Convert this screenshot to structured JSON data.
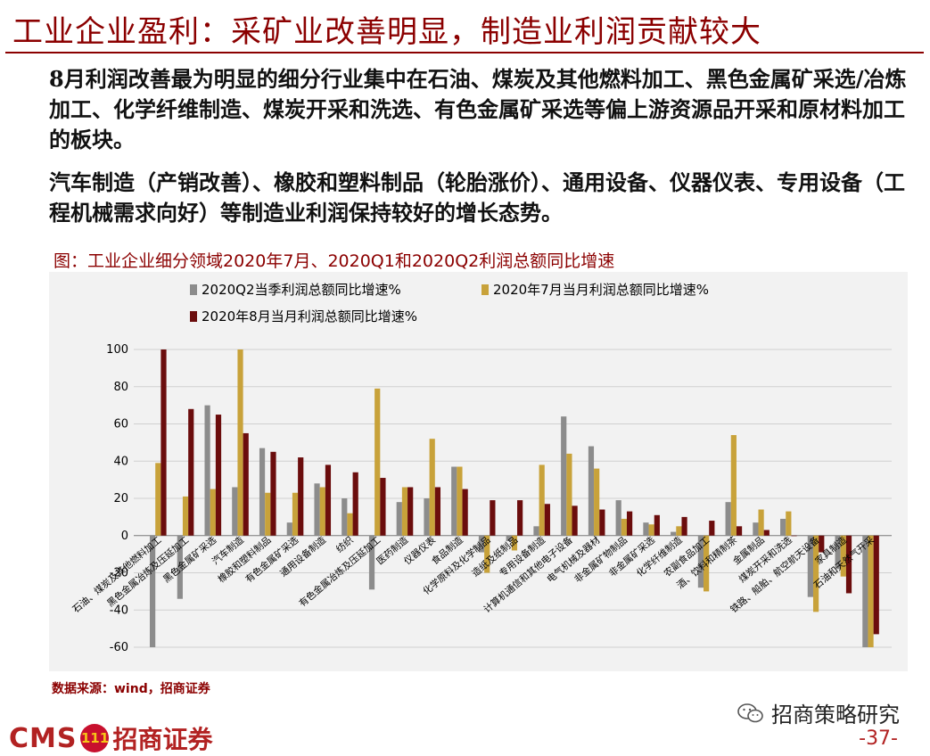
{
  "header": {
    "title": "工业企业盈利：采矿业改善明显，制造业利润贡献较大"
  },
  "paragraphs": [
    "8月利润改善最为明显的细分行业集中在石油、煤炭及其他燃料加工、黑色金属矿采选/冶炼加工、化学纤维制造、煤炭开采和洗选、有色金属矿采选等偏上游资源品开采和原材料加工的板块。",
    "汽车制造（产销改善）、橡胶和塑料制品（轮胎涨价）、通用设备、仪器仪表、专用设备（工程机械需求向好）等制造业利润保持较好的增长态势。"
  ],
  "figure_title": "图：工业企业细分领域2020年7月、2020Q1和2020Q2利润总额同比增速",
  "source": "数据来源：wind，招商证券",
  "footer": {
    "logo_text": "CMS",
    "logo_mark": "111",
    "logo_cn": "招商证券",
    "page": "-37-",
    "watermark": "招商策略研究"
  },
  "colors": {
    "brand": "#8b0000",
    "series_q2": "#8c8c8c",
    "series_jul": "#c8a23a",
    "series_aug": "#6b0d0d"
  },
  "chart_data": {
    "type": "bar",
    "ylim": [
      -60,
      100
    ],
    "yticks": [
      -60,
      -40,
      -20,
      0,
      20,
      40,
      60,
      80,
      100
    ],
    "legend_position": "top",
    "categories": [
      "石油、煤炭及其他燃料加工",
      "黑色金属冶炼及压延加工",
      "黑色金属矿采选",
      "汽车制造",
      "橡胶和塑料制品",
      "有色金属矿采选",
      "通用设备制造",
      "纺织",
      "有色金属冶炼及压延加工",
      "医药制造",
      "仪器仪表",
      "食品制造",
      "化学原料及化学制品",
      "造纸及纸制品",
      "专用设备制造",
      "计算机通信和其他电子设备",
      "电气机械及器材",
      "非金属矿物制品",
      "非金属矿采选",
      "化学纤维制造",
      "农副食品加工",
      "酒、饮料和精制茶",
      "金属制品",
      "煤炭开采和洗选",
      "铁路、船舶、航空航天设备",
      "家具制造",
      "石油和天然气开采"
    ],
    "series": [
      {
        "name": "2020Q2当季利润总额同比增速%",
        "values": [
          -60,
          -34,
          70,
          26,
          47,
          7,
          28,
          20,
          -29,
          18,
          20,
          37,
          -9,
          -3,
          5,
          64,
          48,
          19,
          7,
          2,
          -28,
          18,
          7,
          9,
          -33,
          -18,
          -60
        ]
      },
      {
        "name": "2020年7月当月利润总额同比增速%",
        "values": [
          39,
          21,
          25,
          100,
          23,
          23,
          26,
          12,
          79,
          26,
          52,
          37,
          -20,
          -8,
          38,
          44,
          36,
          9,
          6,
          5,
          -30,
          54,
          14,
          13,
          -41,
          -22,
          -60
        ]
      },
      {
        "name": "2020年8月当月利润总额同比增速%",
        "values": [
          100,
          68,
          65,
          55,
          45,
          42,
          38,
          34,
          31,
          26,
          26,
          25,
          19,
          19,
          17,
          16,
          14,
          13,
          11,
          10,
          8,
          5,
          3,
          0,
          -9,
          -31,
          -53
        ]
      }
    ]
  }
}
